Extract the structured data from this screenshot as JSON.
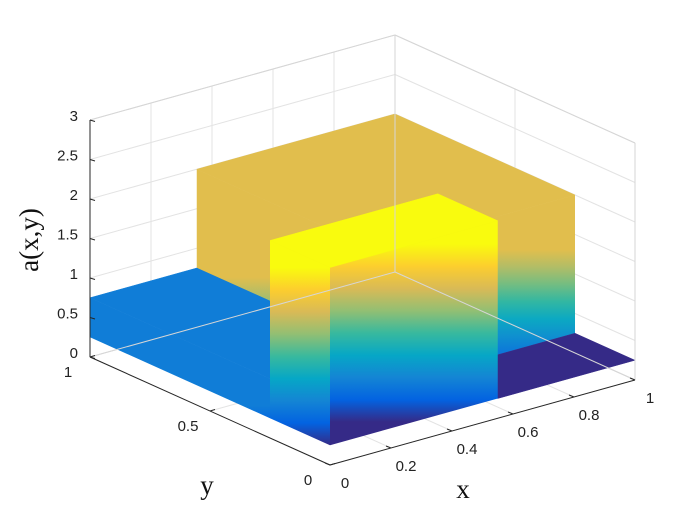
{
  "chart_data": {
    "type": "surface3d",
    "xlabel": "x",
    "ylabel": "y",
    "zlabel": "a(x,y)",
    "xlim": [
      0,
      1
    ],
    "ylim": [
      0,
      1
    ],
    "zlim": [
      0,
      3
    ],
    "xticks": [
      0,
      0.2,
      0.4,
      0.6,
      0.8,
      1
    ],
    "yticks": [
      0,
      0.5,
      1
    ],
    "zticks": [
      0,
      0.5,
      1,
      1.5,
      2,
      2.5,
      3
    ],
    "grid": true,
    "colormap": "parula",
    "tiles": [
      {
        "x": [
          0,
          0.35
        ],
        "y": [
          0.25,
          1
        ],
        "z": 0.75
      },
      {
        "x": [
          0.35,
          1
        ],
        "y": [
          0.25,
          1
        ],
        "z": 2
      },
      {
        "x": [
          0,
          0.55
        ],
        "y": [
          0,
          0.25
        ],
        "z": 2.5
      },
      {
        "x": [
          0.55,
          1
        ],
        "y": [
          0,
          0.25
        ],
        "z": 0.25
      }
    ]
  }
}
